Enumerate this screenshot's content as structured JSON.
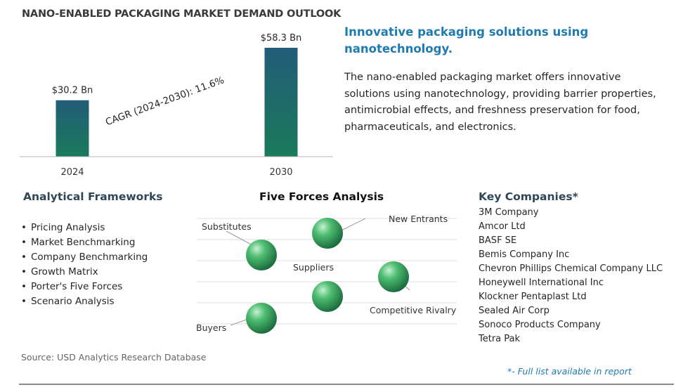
{
  "chart_data": {
    "type": "bar",
    "title": "NANO-ENABLED PACKAGING MARKET DEMAND OUTLOOK",
    "categories": [
      "2024",
      "2030"
    ],
    "values": [
      30.2,
      58.3
    ],
    "value_labels": [
      "$30.2 Bn",
      "$58.3 Bn"
    ],
    "unit": "Bn",
    "annotation": "CAGR (2024-2030):  11.6%",
    "ylim": [
      0,
      58.3
    ],
    "grid": false,
    "legend": "none",
    "bar_gradient": [
      "#1a7a5a",
      "#225c78"
    ]
  },
  "headline": "Innovative packaging solutions using nanotechnology.",
  "description": "The nano-enabled packaging market offers innovative solutions using nanotechnology, providing barrier properties, antimicrobial effects, and freshness preservation for food, pharmaceuticals, and electronics.",
  "frameworks": {
    "heading": "Analytical Frameworks",
    "items": [
      "Pricing Analysis",
      "Market Benchmarking",
      "Company Benchmarking",
      "Growth Matrix",
      "Porter's Five Forces",
      "Scenario Analysis"
    ]
  },
  "five_forces": {
    "heading": "Five Forces Analysis",
    "forces": [
      "Substitutes",
      "New Entrants",
      "Suppliers",
      "Competitive Rivalry",
      "Buyers"
    ],
    "sphere_color": "#2e9a54"
  },
  "companies": {
    "heading": "Key Companies*",
    "items": [
      "3M Company",
      "Amcor Ltd",
      "BASF SE",
      "Bemis Company Inc",
      "Chevron Phillips Chemical Company LLC",
      "Honeywell International Inc",
      "Klockner Pentaplast Ltd",
      "Sealed Air Corp",
      "Sonoco Products Company",
      "Tetra Pak"
    ]
  },
  "source": "Source: USD Analytics Research Database",
  "footnote": "*- Full list available in report",
  "colors": {
    "headline": "#1f7bb0",
    "heading": "#2f4656"
  }
}
